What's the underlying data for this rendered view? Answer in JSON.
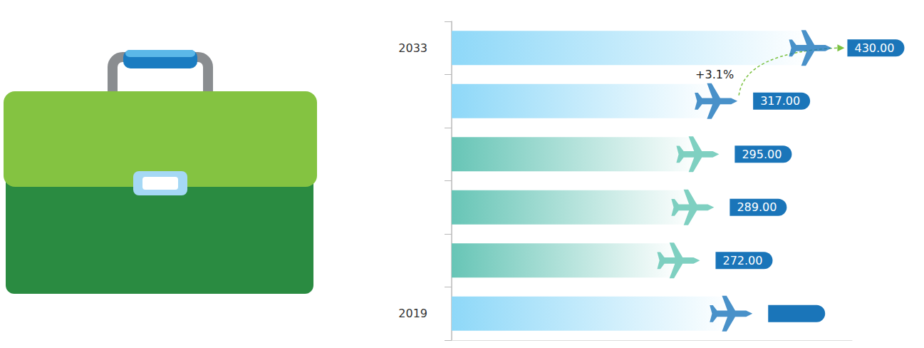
{
  "chart_data": {
    "type": "bar",
    "orientation": "horizontal",
    "categories": [
      "2019",
      null,
      null,
      null,
      null,
      "2033"
    ],
    "values": [
      335,
      272,
      289,
      295,
      317,
      430
    ],
    "value_labels": [
      null,
      "272.00",
      "289.00",
      "295.00",
      "317.00",
      "430.00"
    ],
    "colors": [
      "#8ed8f8",
      "#67c5b6",
      "#67c5b6",
      "#67c5b6",
      "#8ed8f8",
      "#8ed8f8"
    ],
    "xlim": [
      0,
      480
    ],
    "annotation": "+3.1%",
    "marker": "plane",
    "tick_labels": "y",
    "data_labels": true,
    "grid": false
  }
}
